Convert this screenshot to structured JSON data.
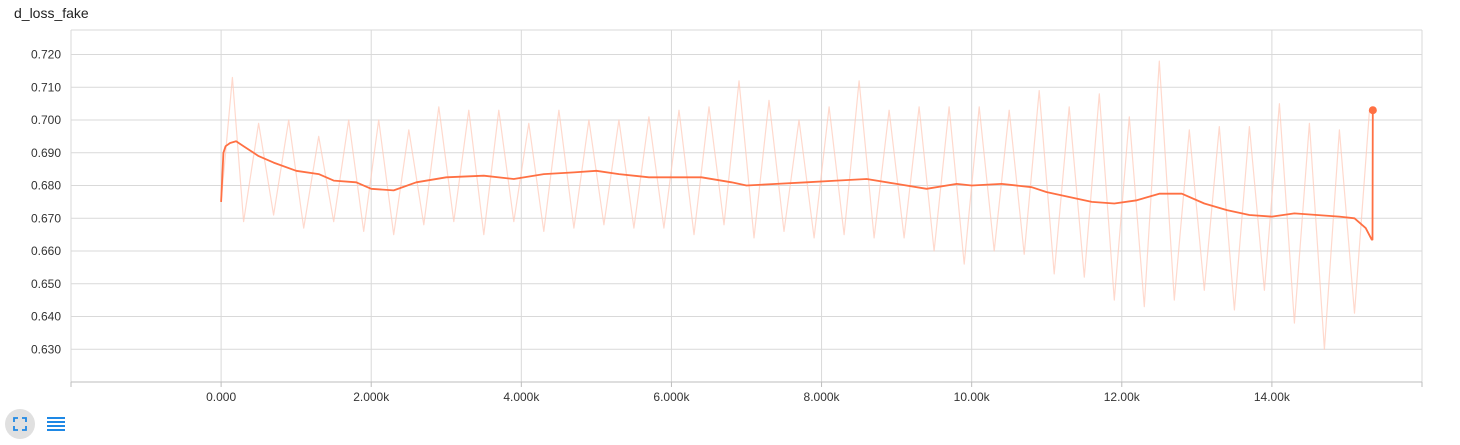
{
  "title": "d_loss_fake",
  "toolbar": {
    "expand_icon": "fullscreen-icon",
    "data_icon": "list-icon"
  },
  "colors": {
    "smoothed": "#ff7043",
    "raw": "#ffccbc",
    "grid": "#d9d9d9",
    "axis": "#bdbdbd",
    "button_bg": "#e0e0e0",
    "icon": "#1e88e5"
  },
  "chart_data": {
    "type": "line",
    "title": "d_loss_fake",
    "xlabel": "",
    "ylabel": "",
    "xlim": [
      -2000,
      16000
    ],
    "ylim": [
      0.62,
      0.7275
    ],
    "xticks": [
      0,
      2000,
      4000,
      6000,
      8000,
      10000,
      12000,
      14000
    ],
    "xtick_labels": [
      "0.000",
      "2.000k",
      "4.000k",
      "6.000k",
      "8.000k",
      "10.00k",
      "12.00k",
      "14.00k"
    ],
    "yticks": [
      0.63,
      0.64,
      0.65,
      0.66,
      0.67,
      0.68,
      0.69,
      0.7,
      0.71,
      0.72
    ],
    "ytick_labels": [
      "0.630",
      "0.640",
      "0.650",
      "0.660",
      "0.670",
      "0.680",
      "0.690",
      "0.700",
      "0.710",
      "0.720"
    ],
    "grid": true,
    "series": [
      {
        "style": "smoothed",
        "x": [
          0,
          30,
          60,
          120,
          200,
          300,
          500,
          700,
          1000,
          1300,
          1500,
          1800,
          2000,
          2300,
          2600,
          3000,
          3500,
          3900,
          4300,
          4700,
          5000,
          5300,
          5700,
          6000,
          6400,
          6800,
          7000,
          7400,
          7800,
          8200,
          8600,
          9000,
          9400,
          9800,
          10000,
          10400,
          10800,
          11000,
          11300,
          11600,
          11900,
          12200,
          12500,
          12800,
          13100,
          13400,
          13700,
          14000,
          14300,
          14600,
          14900,
          15100,
          15250,
          15330,
          15340,
          15345
        ],
        "y": [
          0.675,
          0.69,
          0.692,
          0.693,
          0.6935,
          0.692,
          0.689,
          0.687,
          0.6845,
          0.6835,
          0.6815,
          0.681,
          0.679,
          0.6785,
          0.681,
          0.6825,
          0.683,
          0.682,
          0.6835,
          0.684,
          0.6845,
          0.6835,
          0.6825,
          0.6825,
          0.6825,
          0.681,
          0.68,
          0.6805,
          0.681,
          0.6815,
          0.682,
          0.6805,
          0.679,
          0.6805,
          0.68,
          0.6805,
          0.6795,
          0.678,
          0.6765,
          0.675,
          0.6745,
          0.6755,
          0.6775,
          0.6775,
          0.6745,
          0.6725,
          0.671,
          0.6705,
          0.6715,
          0.671,
          0.6705,
          0.67,
          0.667,
          0.6635,
          0.6635,
          0.703
        ]
      },
      {
        "style": "raw",
        "x": [
          0,
          150,
          300,
          500,
          700,
          900,
          1100,
          1300,
          1500,
          1700,
          1900,
          2100,
          2300,
          2500,
          2700,
          2900,
          3100,
          3300,
          3500,
          3700,
          3900,
          4100,
          4300,
          4500,
          4700,
          4900,
          5100,
          5300,
          5500,
          5700,
          5900,
          6100,
          6300,
          6500,
          6700,
          6900,
          7100,
          7300,
          7500,
          7700,
          7900,
          8100,
          8300,
          8500,
          8700,
          8900,
          9100,
          9300,
          9500,
          9700,
          9900,
          10100,
          10300,
          10500,
          10700,
          10900,
          11100,
          11300,
          11500,
          11700,
          11900,
          12100,
          12300,
          12500,
          12700,
          12900,
          13100,
          13300,
          13500,
          13700,
          13900,
          14100,
          14300,
          14500,
          14700,
          14900,
          15100,
          15300
        ],
        "y": [
          0.675,
          0.713,
          0.669,
          0.699,
          0.671,
          0.7,
          0.667,
          0.695,
          0.669,
          0.7,
          0.666,
          0.7,
          0.665,
          0.697,
          0.668,
          0.704,
          0.669,
          0.703,
          0.665,
          0.703,
          0.669,
          0.699,
          0.666,
          0.703,
          0.667,
          0.7,
          0.668,
          0.7,
          0.667,
          0.701,
          0.667,
          0.703,
          0.665,
          0.704,
          0.668,
          0.712,
          0.664,
          0.706,
          0.666,
          0.7,
          0.664,
          0.704,
          0.665,
          0.712,
          0.664,
          0.703,
          0.664,
          0.704,
          0.66,
          0.704,
          0.656,
          0.704,
          0.66,
          0.703,
          0.659,
          0.709,
          0.653,
          0.704,
          0.652,
          0.708,
          0.645,
          0.701,
          0.643,
          0.718,
          0.645,
          0.697,
          0.648,
          0.698,
          0.642,
          0.698,
          0.648,
          0.705,
          0.638,
          0.699,
          0.63,
          0.697,
          0.641,
          0.703
        ]
      }
    ]
  }
}
